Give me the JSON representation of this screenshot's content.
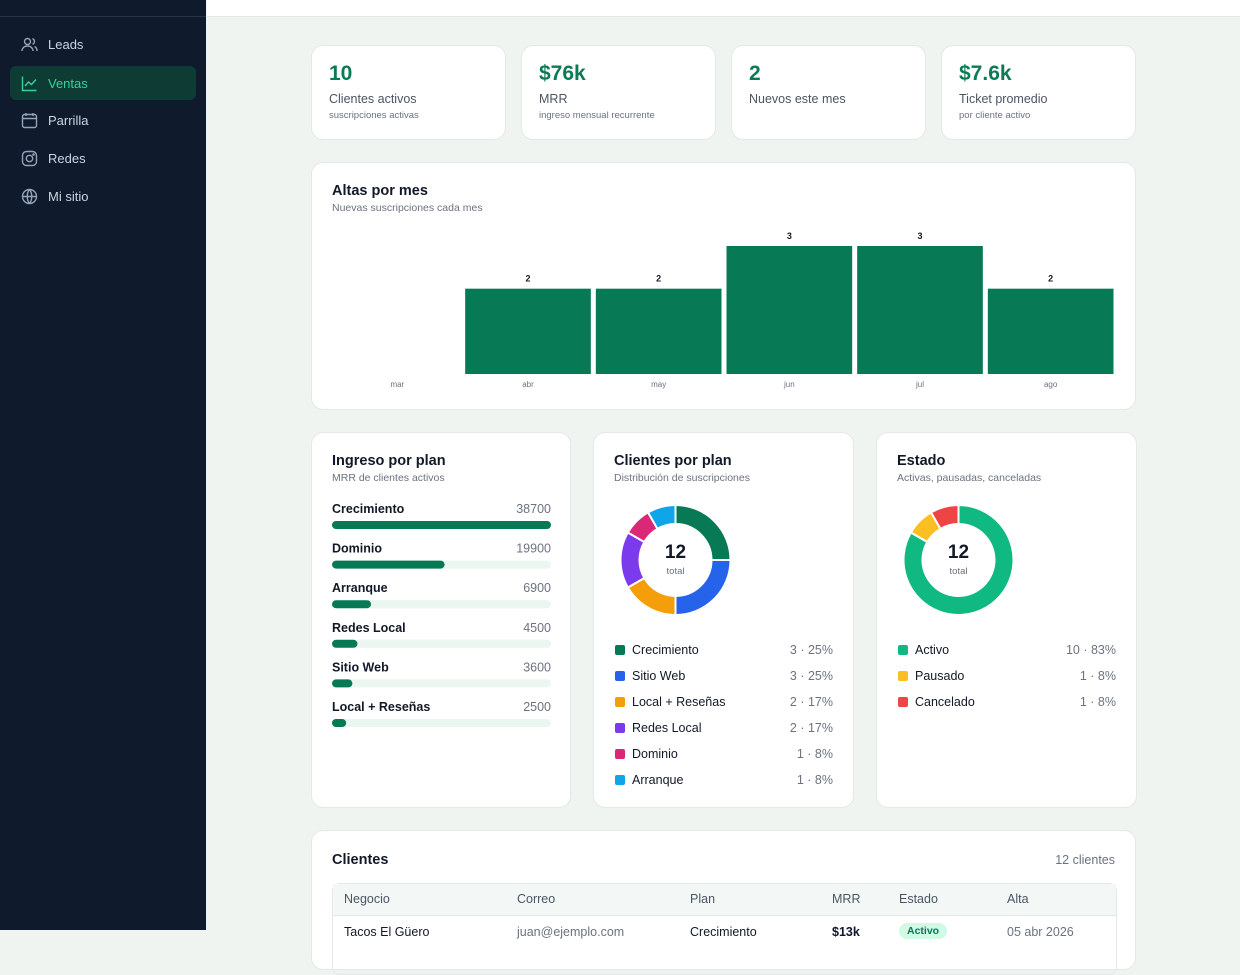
{
  "sidebar": {
    "items": [
      "Leads",
      "Ventas",
      "Parrilla",
      "Redes",
      "Mi sitio"
    ]
  },
  "kpis": [
    {
      "value": "10",
      "label": "Clientes activos",
      "note": "suscripciones activas"
    },
    {
      "value": "$76k",
      "label": "MRR",
      "note": "ingreso mensual recurrente"
    },
    {
      "value": "2",
      "label": "Nuevos este mes"
    },
    {
      "value": "$7.6k",
      "label": "Ticket promedio",
      "note": "por cliente activo"
    }
  ],
  "chart_data": [
    {
      "type": "bar",
      "title": "Altas por mes",
      "subtitle": "Nuevas suscripciones cada mes",
      "categories": [
        "mar",
        "abr",
        "may",
        "jun",
        "jul",
        "ago"
      ],
      "values": [
        0,
        2,
        2,
        3,
        3,
        2
      ],
      "color": "#077a55"
    },
    {
      "type": "hbar",
      "title": "Ingreso por plan",
      "subtitle": "MRR de clientes activos",
      "categories": [
        "Crecimiento",
        "Dominio",
        "Arranque",
        "Redes Local",
        "Sitio Web",
        "Local + Reseñas"
      ],
      "values": [
        38700,
        19900,
        6900,
        4500,
        3600,
        2500
      ],
      "color": "#077a55"
    },
    {
      "type": "donut",
      "title": "Clientes por plan",
      "subtitle": "Distribución de suscripciones",
      "total": 12,
      "total_label": "total",
      "categories": [
        "Crecimiento",
        "Sitio Web",
        "Local + Reseñas",
        "Redes Local",
        "Dominio",
        "Arranque"
      ],
      "values": [
        3,
        3,
        2,
        2,
        1,
        1
      ],
      "value_labels": [
        "3 · 25%",
        "3 · 25%",
        "2 · 17%",
        "2 · 17%",
        "1 · 8%",
        "1 · 8%"
      ],
      "colors": [
        "#077a55",
        "#2563eb",
        "#f59e0b",
        "#7c3aed",
        "#db2777",
        "#0ea5e9"
      ]
    },
    {
      "type": "donut",
      "title": "Estado",
      "subtitle": "Activas, pausadas, canceladas",
      "total": 12,
      "total_label": "total",
      "categories": [
        "Activo",
        "Pausado",
        "Cancelado"
      ],
      "values": [
        10,
        1,
        1
      ],
      "value_labels": [
        "10 · 83%",
        "1 · 8%",
        "1 · 8%"
      ],
      "colors": [
        "#10b981",
        "#fbbf24",
        "#ef4444"
      ]
    }
  ],
  "table": {
    "title": "Clientes",
    "count": "12 clientes",
    "columns": [
      "Negocio",
      "Correo",
      "Plan",
      "MRR",
      "Estado",
      "Alta"
    ],
    "rows": [
      [
        "Tacos El Güero",
        "juan@ejemplo.com",
        "Crecimiento",
        "$13k",
        "Activo",
        "05 abr 2026"
      ]
    ]
  }
}
